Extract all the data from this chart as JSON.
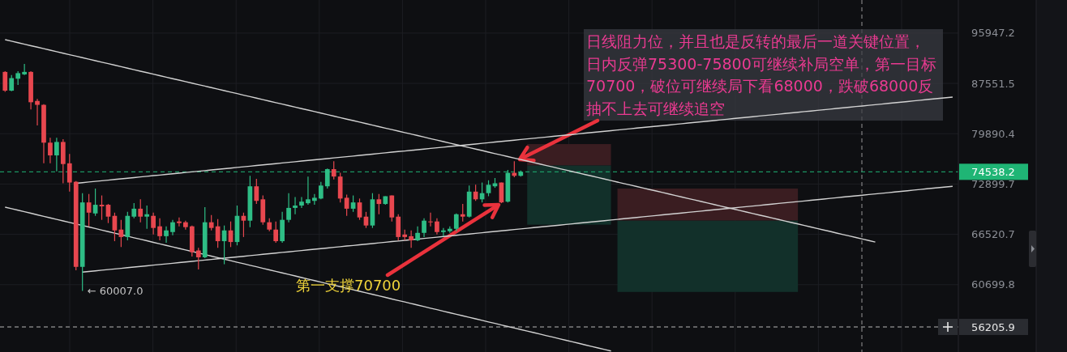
{
  "chart_data": {
    "type": "candlestick",
    "log": true,
    "grid": true,
    "tick_labels": "y",
    "categories": [
      null,
      null,
      null,
      null,
      null,
      null,
      null,
      null,
      null,
      null,
      null,
      null,
      null,
      null,
      null,
      null,
      null,
      null,
      null,
      null,
      null,
      null,
      null,
      null,
      null,
      null,
      null,
      null,
      null,
      null,
      null,
      null,
      null,
      null,
      null,
      null,
      null,
      null,
      null,
      null,
      null,
      null,
      null,
      null,
      null,
      null,
      null,
      null,
      null,
      null,
      null,
      null,
      null,
      null,
      null,
      null,
      null,
      null,
      null,
      null,
      null,
      null,
      null,
      null,
      null,
      null,
      null,
      null,
      null,
      null,
      null,
      null,
      null,
      null,
      null,
      null,
      null,
      null,
      null,
      null,
      null,
      null,
      null,
      null,
      null,
      null,
      null,
      null,
      null,
      null,
      null,
      null,
      null,
      null,
      null,
      null,
      null,
      null,
      null,
      null,
      null,
      null,
      null,
      null,
      null,
      null,
      null,
      null,
      null,
      null,
      null,
      null,
      null,
      null,
      null,
      null,
      null,
      null,
      null,
      null,
      null,
      null,
      null,
      null,
      null,
      null,
      null,
      null,
      null,
      null,
      null,
      null,
      null,
      null,
      null,
      null,
      null,
      null,
      null,
      null,
      null,
      null,
      null,
      null,
      null,
      null,
      null,
      null
    ],
    "ohlc": [
      [
        89400,
        89500,
        86200,
        86400
      ],
      [
        86400,
        88900,
        86300,
        88400
      ],
      [
        88300,
        89500,
        87300,
        89200
      ],
      [
        89000,
        90700,
        88900,
        89400
      ],
      [
        89400,
        89500,
        83500,
        84600
      ],
      [
        84800,
        85100,
        81100,
        84200
      ],
      [
        84200,
        84300,
        75700,
        78600
      ],
      [
        78600,
        79300,
        75700,
        76800
      ],
      [
        76800,
        79300,
        74600,
        78700
      ],
      [
        78700,
        79100,
        73000,
        75600
      ],
      [
        75700,
        77000,
        71900,
        73100
      ],
      [
        73200,
        73300,
        62300,
        62700
      ],
      [
        62700,
        71700,
        60007,
        70500
      ],
      [
        70500,
        71600,
        67500,
        69200
      ],
      [
        69100,
        72300,
        68800,
        70200
      ],
      [
        70200,
        71400,
        68300,
        70000
      ],
      [
        70200,
        70300,
        67900,
        68700
      ],
      [
        68800,
        69200,
        65700,
        67000
      ],
      [
        67100,
        68300,
        65000,
        66200
      ],
      [
        66200,
        69300,
        65800,
        68800
      ],
      [
        68700,
        70400,
        68500,
        69700
      ],
      [
        69700,
        70900,
        68000,
        68700
      ],
      [
        68700,
        70100,
        67200,
        69000
      ],
      [
        68800,
        69200,
        66500,
        67300
      ],
      [
        67500,
        68500,
        65800,
        66300
      ],
      [
        66300,
        67500,
        65500,
        67000
      ],
      [
        66800,
        68300,
        66400,
        68000
      ],
      [
        68100,
        68600,
        67500,
        67900
      ],
      [
        68000,
        68200,
        67100,
        67400
      ],
      [
        67500,
        67600,
        63900,
        64400
      ],
      [
        64600,
        64900,
        62400,
        63800
      ],
      [
        63800,
        69900,
        63700,
        68000
      ],
      [
        68000,
        68900,
        67000,
        67300
      ],
      [
        67500,
        68400,
        64900,
        65700
      ],
      [
        65700,
        67600,
        63000,
        67000
      ],
      [
        67000,
        68100,
        65000,
        65600
      ],
      [
        65600,
        70100,
        65200,
        68800
      ],
      [
        68800,
        69200,
        66200,
        68200
      ],
      [
        68200,
        74000,
        67400,
        72600
      ],
      [
        72600,
        73600,
        70300,
        70700
      ],
      [
        70900,
        71400,
        67700,
        68000
      ],
      [
        68000,
        68500,
        66900,
        67100
      ],
      [
        67100,
        68100,
        65500,
        65700
      ],
      [
        65700,
        69300,
        65500,
        68300
      ],
      [
        68300,
        71700,
        68000,
        69800
      ],
      [
        69800,
        71200,
        69000,
        70100
      ],
      [
        70100,
        71200,
        69800,
        70600
      ],
      [
        70400,
        73900,
        70200,
        70900
      ],
      [
        70700,
        71600,
        70200,
        71100
      ],
      [
        71000,
        73200,
        70900,
        72700
      ],
      [
        72600,
        75000,
        72300,
        74900
      ],
      [
        74900,
        76000,
        73500,
        73900
      ],
      [
        73900,
        74400,
        70500,
        71000
      ],
      [
        71100,
        71500,
        68800,
        69700
      ],
      [
        69700,
        71400,
        69300,
        70500
      ],
      [
        70500,
        71000,
        68300,
        68600
      ],
      [
        68700,
        69300,
        67300,
        67600
      ],
      [
        67600,
        71700,
        67300,
        70900
      ],
      [
        70900,
        71600,
        69000,
        70300
      ],
      [
        70300,
        71300,
        70200,
        71300
      ],
      [
        71400,
        71400,
        68100,
        68600
      ],
      [
        68700,
        69000,
        65800,
        66200
      ],
      [
        66500,
        67100,
        65800,
        66200
      ],
      [
        66300,
        67000,
        64900,
        65800
      ],
      [
        65800,
        67500,
        65700,
        66700
      ],
      [
        66700,
        68500,
        66200,
        68200
      ],
      [
        68100,
        69200,
        67500,
        68000
      ],
      [
        68100,
        68500,
        66500,
        66800
      ],
      [
        66800,
        67300,
        66300,
        67000
      ],
      [
        66900,
        67500,
        66700,
        67200
      ],
      [
        67200,
        69100,
        66900,
        69000
      ],
      [
        69000,
        70300,
        68100,
        68700
      ],
      [
        68700,
        72700,
        68600,
        71900
      ],
      [
        71900,
        72800,
        70700,
        70900
      ],
      [
        70900,
        73100,
        70500,
        71700
      ],
      [
        71700,
        73400,
        71300,
        72800
      ],
      [
        72600,
        73700,
        72400,
        73000
      ],
      [
        73100,
        73100,
        70400,
        70500
      ],
      [
        70600,
        74800,
        70500,
        74400
      ],
      [
        74400,
        76000,
        73800,
        74000
      ],
      [
        74000,
        74700,
        73900,
        74538.2
      ],
      null,
      null,
      null,
      null,
      null,
      null,
      null,
      null,
      null,
      null,
      null,
      null,
      null,
      null,
      null,
      null,
      null,
      null,
      null,
      null,
      null,
      null,
      null,
      null,
      null,
      null,
      null,
      null,
      null,
      null,
      null,
      null,
      null,
      null,
      null,
      null,
      null,
      null,
      null,
      null,
      null,
      null,
      null,
      null,
      null,
      null,
      null,
      null,
      null,
      null,
      null,
      null,
      null,
      null,
      null,
      null,
      null,
      null,
      null,
      null,
      null,
      null,
      null,
      null,
      null,
      null,
      null
    ],
    "colors": [
      "#e8474f",
      "#2ebd85",
      "#2ebd85",
      "#2ebd85",
      "#e8474f",
      "#e8474f",
      "#e8474f",
      "#e8474f",
      "#2ebd85",
      "#e8474f",
      "#e8474f",
      "#e8474f",
      "#2ebd85",
      "#e8474f",
      "#2ebd85",
      "#e8474f",
      "#e8474f",
      "#e8474f",
      "#e8474f",
      "#2ebd85",
      "#2ebd85",
      "#e8474f",
      "#2ebd85",
      "#e8474f",
      "#e8474f",
      "#2ebd85",
      "#2ebd85",
      "#e8474f",
      "#e8474f",
      "#e8474f",
      "#e8474f",
      "#2ebd85",
      "#e8474f",
      "#e8474f",
      "#2ebd85",
      "#e8474f",
      "#2ebd85",
      "#e8474f",
      "#2ebd85",
      "#e8474f",
      "#e8474f",
      "#e8474f",
      "#e8474f",
      "#2ebd85",
      "#2ebd85",
      "#2ebd85",
      "#2ebd85",
      "#2ebd85",
      "#2ebd85",
      "#2ebd85",
      "#2ebd85",
      "#e8474f",
      "#e8474f",
      "#e8474f",
      "#2ebd85",
      "#e8474f",
      "#e8474f",
      "#2ebd85",
      "#e8474f",
      "#2ebd85",
      "#e8474f",
      "#e8474f",
      "#e8474f",
      "#e8474f",
      "#2ebd85",
      "#2ebd85",
      "#e8474f",
      "#e8474f",
      "#2ebd85",
      "#2ebd85",
      "#2ebd85",
      "#e8474f",
      "#2ebd85",
      "#e8474f",
      "#2ebd85",
      "#2ebd85",
      "#2ebd85",
      "#e8474f",
      "#2ebd85",
      "#e8474f",
      "#2ebd85",
      null,
      null,
      null,
      null,
      null,
      null,
      null,
      null,
      null,
      null,
      null,
      null,
      null,
      null,
      null,
      null,
      null,
      null,
      null,
      null,
      null,
      null,
      null,
      null,
      null,
      null,
      null,
      null,
      null,
      null,
      null,
      null,
      null,
      null,
      null,
      null,
      null,
      null,
      null,
      null,
      null,
      null,
      null,
      null,
      null,
      null,
      null,
      null,
      null,
      null,
      null,
      null,
      null,
      null,
      null,
      null,
      null,
      null,
      null,
      null,
      null,
      null,
      null,
      null,
      null,
      null,
      null
    ],
    "series": [
      {
        "type": "line",
        "color": "#d2d2d2",
        "values": [
          94800,
          94540,
          94290,
          94030,
          93770,
          93520,
          93260,
          93010,
          92760,
          92500,
          92250,
          92000,
          91750,
          91500,
          91250,
          91000,
          90750,
          90510,
          90260,
          90010,
          89770,
          89520,
          89280,
          89040,
          88790,
          88550,
          88310,
          88070,
          87830,
          87590,
          87350,
          87120,
          86880,
          86640,
          86410,
          86170,
          85940,
          85700,
          85470,
          85240,
          85000,
          84770,
          84540,
          84310,
          84080,
          83850,
          83620,
          83400,
          83170,
          82940,
          82720,
          82490,
          82270,
          82040,
          81820,
          81600,
          81370,
          81150,
          80930,
          80710,
          80490,
          80270,
          80050,
          79840,
          79620,
          79400,
          79180,
          78970,
          78750,
          78540,
          78320,
          78110,
          77900,
          77690,
          77480,
          77260,
          77050,
          76850,
          76640,
          76430,
          76220,
          76010,
          75800,
          75600,
          75390,
          75190,
          74980,
          74780,
          74570,
          74370,
          74170,
          73970,
          73770,
          73560,
          73360,
          73160,
          72960,
          72770,
          72570,
          72370,
          72170,
          71980,
          71780,
          71590,
          71390,
          71190,
          71000,
          70810,
          70620,
          70420,
          70230,
          70040,
          69850,
          69660,
          69470,
          69280,
          69090,
          68900,
          68720,
          68530,
          68340,
          68160,
          67970,
          67790,
          67600,
          67420,
          67230,
          67050,
          66870,
          66680,
          66500,
          66320,
          66140,
          65960,
          65780,
          65600,
          null,
          null,
          null,
          null,
          null,
          null,
          null,
          null,
          null,
          null,
          null,
          null
        ]
      },
      {
        "type": "line",
        "color": "#d2d2d2",
        "values": [
          null,
          null,
          null,
          null,
          null,
          null,
          null,
          null,
          null,
          null,
          null,
          73000,
          73080,
          73170,
          73250,
          73340,
          73420,
          73510,
          73590,
          73680,
          73760,
          73850,
          73930,
          74020,
          74100,
          74190,
          74270,
          74360,
          74450,
          74530,
          74620,
          74700,
          74790,
          74880,
          74960,
          75050,
          75140,
          75220,
          75310,
          75400,
          75480,
          75570,
          75660,
          75750,
          75830,
          75920,
          76010,
          76100,
          76180,
          76270,
          76360,
          76450,
          76540,
          76620,
          76710,
          76800,
          76890,
          76980,
          77070,
          77160,
          77250,
          77340,
          77420,
          77510,
          77600,
          77690,
          77780,
          77870,
          77960,
          78050,
          78140,
          78230,
          78320,
          78410,
          78500,
          78590,
          78690,
          78780,
          78870,
          78960,
          79050,
          79140,
          79230,
          79320,
          79410,
          79510,
          79600,
          79690,
          79780,
          79870,
          79970,
          80060,
          80150,
          80240,
          80340,
          80430,
          80520,
          80610,
          80710,
          80800,
          80890,
          80990,
          81080,
          81170,
          81270,
          81360,
          81460,
          81550,
          81640,
          81740,
          81830,
          81930,
          82020,
          82120,
          82210,
          82310,
          82400,
          82500,
          82590,
          82690,
          82780,
          82880,
          82970,
          83070,
          83170,
          83260,
          83360,
          83450,
          83550,
          83650,
          83740,
          83840,
          83940,
          84030,
          84130,
          84230,
          84320,
          84420,
          84520,
          84620,
          84710,
          84810,
          84910,
          85010,
          85110,
          85210,
          85300,
          85400
        ]
      },
      {
        "type": "line",
        "color": "#d2d2d2",
        "values": [
          null,
          null,
          null,
          null,
          null,
          null,
          null,
          null,
          null,
          null,
          null,
          null,
          62100,
          62170,
          62240,
          62320,
          62390,
          62460,
          62530,
          62610,
          62680,
          62750,
          62820,
          62900,
          62970,
          63040,
          63110,
          63190,
          63260,
          63330,
          63410,
          63480,
          63550,
          63630,
          63700,
          63780,
          63850,
          63920,
          64000,
          64070,
          64150,
          64220,
          64290,
          64370,
          64440,
          64520,
          64590,
          64670,
          64740,
          64820,
          64890,
          64970,
          65040,
          65120,
          65190,
          65270,
          65340,
          65420,
          65500,
          65570,
          65650,
          65720,
          65800,
          65880,
          65950,
          66030,
          66100,
          66180,
          66260,
          66330,
          66410,
          66490,
          66560,
          66640,
          66720,
          66800,
          66870,
          66950,
          67030,
          67110,
          67180,
          67260,
          67340,
          67420,
          67500,
          67570,
          67650,
          67730,
          67810,
          67890,
          67970,
          68040,
          68120,
          68200,
          68280,
          68360,
          68440,
          68520,
          68600,
          68680,
          68760,
          68840,
          68920,
          69000,
          69080,
          69160,
          69240,
          69320,
          69400,
          69480,
          69560,
          69640,
          69720,
          69800,
          69880,
          69960,
          70040,
          70120,
          70200,
          70290,
          70370,
          70450,
          70530,
          70610,
          70690,
          70780,
          70860,
          70940,
          71020,
          71100,
          71190,
          71270,
          71350,
          71430,
          71520,
          71600,
          71680,
          71760,
          71850,
          71930,
          72010,
          72100,
          72180,
          72270,
          72350,
          72430,
          72520,
          72600
        ]
      },
      {
        "type": "line",
        "color": "#d2d2d2",
        "values": [
          69900,
          69710,
          69510,
          69320,
          69130,
          68930,
          68740,
          68550,
          68360,
          68170,
          67980,
          67790,
          67600,
          67420,
          67230,
          67040,
          66850,
          66670,
          66480,
          66300,
          66110,
          65930,
          65750,
          65560,
          65380,
          65200,
          65020,
          64840,
          64660,
          64480,
          64300,
          64120,
          63940,
          63760,
          63590,
          63410,
          63230,
          63060,
          62880,
          62710,
          62530,
          62360,
          62190,
          62010,
          61840,
          61670,
          61490,
          61320,
          61150,
          60980,
          60810,
          60650,
          60480,
          60310,
          60140,
          59970,
          59810,
          59640,
          59470,
          59310,
          59140,
          58980,
          58820,
          58650,
          58490,
          58330,
          58160,
          58000,
          57840,
          57680,
          57520,
          57360,
          57200,
          57040,
          56880,
          56720,
          56570,
          56410,
          56250,
          56100,
          55940,
          55790,
          55630,
          55480,
          55320,
          55170,
          55010,
          54860,
          54710,
          54560,
          54400,
          54250,
          54100,
          53950,
          53800,
          null,
          null,
          null,
          null,
          null,
          null,
          null,
          null,
          null,
          null,
          null,
          null,
          null,
          null,
          null,
          null,
          null,
          null,
          null,
          null,
          null,
          null,
          null,
          null,
          null,
          null,
          null,
          null,
          null,
          null,
          null,
          null,
          null,
          null,
          null,
          null,
          null,
          null,
          null,
          null,
          null,
          null,
          null,
          null,
          null,
          null,
          null,
          null,
          null,
          null,
          null,
          null,
          null
        ]
      }
    ],
    "bands": [
      {
        "axis": "y",
        "from": 75400,
        "to": 78400,
        "color": "#3a1d21"
      },
      {
        "axis": "y",
        "from": 67700,
        "to": 75400,
        "color": "#12302a"
      },
      {
        "axis": "y",
        "from": 68200,
        "to": 72300,
        "color": "#3a1d21"
      },
      {
        "axis": "y",
        "from": 59900,
        "to": 68200,
        "color": "#12302a"
      }
    ],
    "ylim": [
      53700,
      101900
    ],
    "yticks": [
      95947.2,
      87551.5,
      79890.4,
      72899.7,
      66520.7,
      60699.8
    ],
    "ref_lines": [
      {
        "axis": "y",
        "value": 74538.2,
        "label": "74538.2",
        "color": "#1fb575",
        "line_style": "dashed"
      },
      {
        "axis": "y",
        "value": 56205.9,
        "label": "56205.9",
        "color": "#b8b8b8",
        "line_style": "dashed"
      }
    ],
    "annotations": [
      "日线阻力位，并且也是反转的最后一道关键位置，日内反弹75300-75800可继续补局空单，第一目标70700，破位可继续局下看68000，跌破68000反抽不上去可继续追空",
      "第一支撑70700",
      "← 60007.0"
    ]
  }
}
